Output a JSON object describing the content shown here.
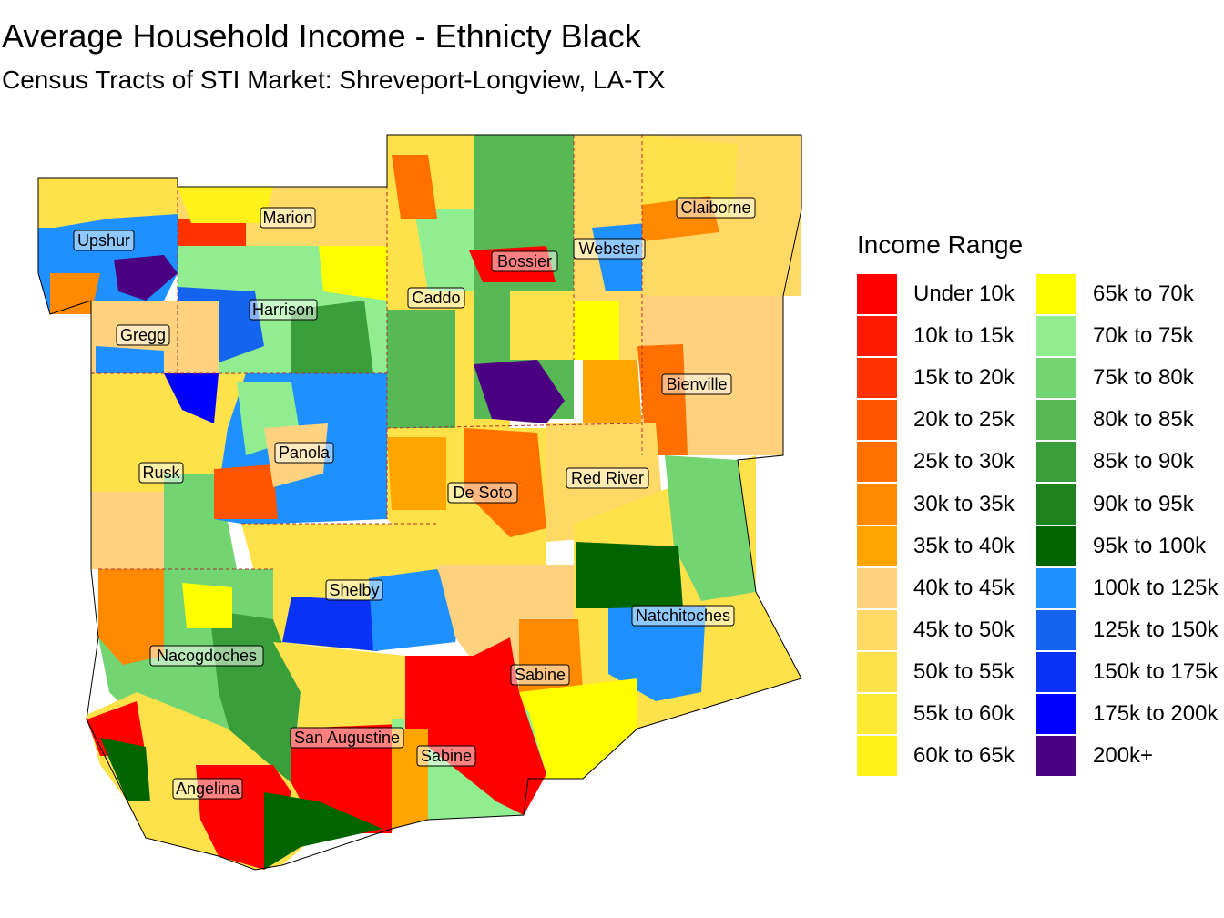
{
  "title": "Average Household Income - Ethnicty Black",
  "subtitle": "Census Tracts of STI Market: Shreveport-Longview, LA-TX",
  "legend": {
    "title": "Income Range",
    "items": [
      {
        "label": "Under 10k",
        "color": "#FF0000"
      },
      {
        "label": "10k to 15k",
        "color": "#FF1A00"
      },
      {
        "label": "15k to 20k",
        "color": "#FF3300"
      },
      {
        "label": "20k to 25k",
        "color": "#FF5500"
      },
      {
        "label": "25k to 30k",
        "color": "#FF7000"
      },
      {
        "label": "30k to 35k",
        "color": "#FF8A00"
      },
      {
        "label": "35k to 40k",
        "color": "#FFA500"
      },
      {
        "label": "40k to 45k",
        "color": "#FFD27F"
      },
      {
        "label": "45k to 50k",
        "color": "#FFD966"
      },
      {
        "label": "50k to 55k",
        "color": "#FFE14A"
      },
      {
        "label": "55k to 60k",
        "color": "#FFEA33"
      },
      {
        "label": "60k to 65k",
        "color": "#FFF21A"
      },
      {
        "label": "65k to 70k",
        "color": "#FFFF00"
      },
      {
        "label": "70k to 75k",
        "color": "#90EE90"
      },
      {
        "label": "75k to 80k",
        "color": "#72D572"
      },
      {
        "label": "80k to 85k",
        "color": "#56B956"
      },
      {
        "label": "85k to 90k",
        "color": "#3A9E3A"
      },
      {
        "label": "90k to 95k",
        "color": "#1E821E"
      },
      {
        "label": "95k to 100k",
        "color": "#006400"
      },
      {
        "label": "100k to 125k",
        "color": "#1E90FF"
      },
      {
        "label": "125k to 150k",
        "color": "#1464F0"
      },
      {
        "label": "150k to 175k",
        "color": "#0A32F5"
      },
      {
        "label": "175k to 200k",
        "color": "#0000FF"
      },
      {
        "label": "200k+",
        "color": "#4B0082"
      }
    ]
  },
  "counties": [
    {
      "name": "Upshur"
    },
    {
      "name": "Marion"
    },
    {
      "name": "Caddo"
    },
    {
      "name": "Bossier"
    },
    {
      "name": "Webster"
    },
    {
      "name": "Claiborne"
    },
    {
      "name": "Harrison"
    },
    {
      "name": "Gregg"
    },
    {
      "name": "Bienville"
    },
    {
      "name": "Panola"
    },
    {
      "name": "Rusk"
    },
    {
      "name": "De Soto"
    },
    {
      "name": "Red River"
    },
    {
      "name": "Shelby"
    },
    {
      "name": "Natchitoches"
    },
    {
      "name": "Nacogdoches"
    },
    {
      "name": "Sabine"
    },
    {
      "name": "San Augustine"
    },
    {
      "name": "Sabine"
    },
    {
      "name": "Angelina"
    }
  ]
}
